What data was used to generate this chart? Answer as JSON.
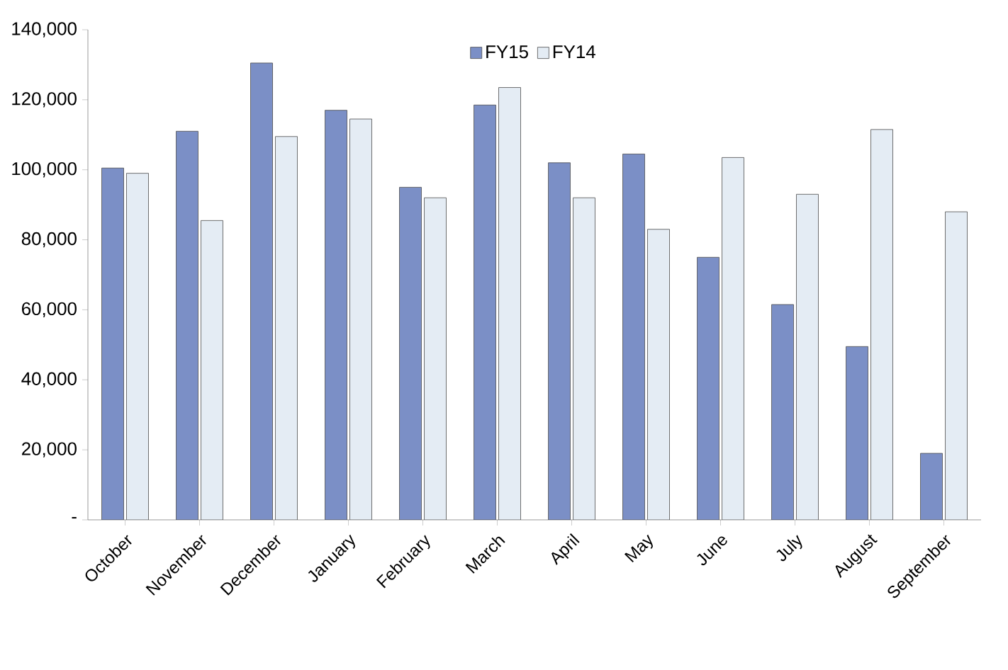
{
  "chart_data": {
    "type": "bar",
    "categories": [
      "October",
      "November",
      "December",
      "January",
      "February",
      "March",
      "April",
      "May",
      "June",
      "July",
      "August",
      "September"
    ],
    "series": [
      {
        "name": "FY15",
        "color": "#7b8fc6",
        "values": [
          100500,
          111000,
          130500,
          117000,
          95000,
          118500,
          102000,
          104500,
          75000,
          61500,
          49500,
          19000
        ]
      },
      {
        "name": "FY14",
        "color": "#e4ecf4",
        "values": [
          99000,
          85500,
          109500,
          114500,
          92000,
          123500,
          92000,
          83000,
          103500,
          93000,
          111500,
          88000
        ]
      }
    ],
    "ylim": [
      0,
      140000
    ],
    "yticks": [
      {
        "value": 0,
        "label": "-"
      },
      {
        "value": 20000,
        "label": "20,000"
      },
      {
        "value": 40000,
        "label": "40,000"
      },
      {
        "value": 60000,
        "label": "60,000"
      },
      {
        "value": 80000,
        "label": "80,000"
      },
      {
        "value": 100000,
        "label": "100,000"
      },
      {
        "value": 120000,
        "label": "120,000"
      },
      {
        "value": 140000,
        "label": "140,000"
      }
    ],
    "grid": false,
    "legend": "top"
  }
}
